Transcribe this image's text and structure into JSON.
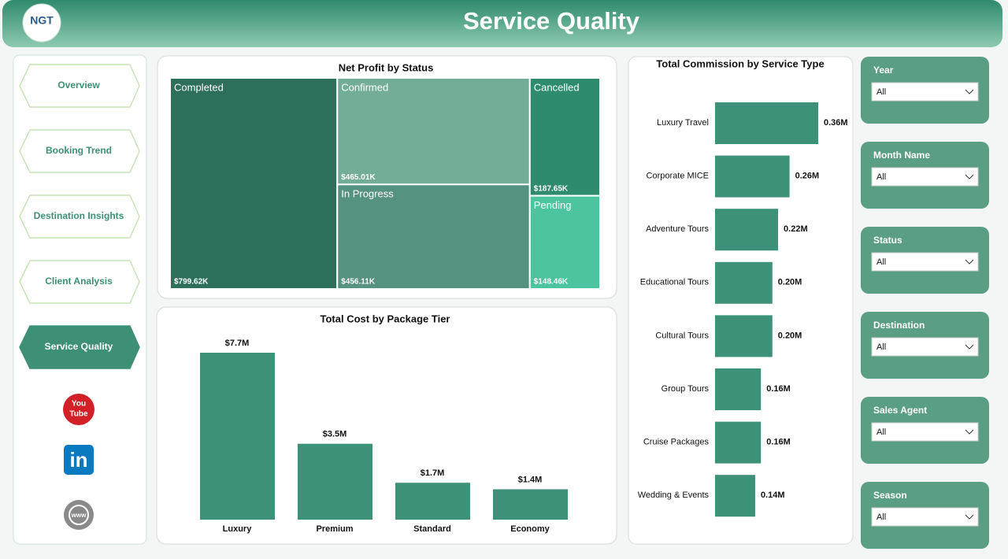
{
  "header": {
    "logo": "NGT",
    "title": "Service Quality"
  },
  "nav": [
    "Overview",
    "Booking Trend",
    "Destination Insights",
    "Client Analysis",
    "Service Quality"
  ],
  "social": {
    "youtube": [
      "You",
      "Tube"
    ],
    "linkedin": "in",
    "web": "www"
  },
  "filters": [
    {
      "label": "Year",
      "value": "All"
    },
    {
      "label": "Month Name",
      "value": "All"
    },
    {
      "label": "Status",
      "value": "All"
    },
    {
      "label": "Destination",
      "value": "All"
    },
    {
      "label": "Sales Agent",
      "value": "All"
    },
    {
      "label": "Season",
      "value": "All"
    }
  ],
  "chart_data": [
    {
      "type": "treemap",
      "title": "Net Profit by Status",
      "categories": [
        "Completed",
        "Confirmed",
        "In Progress",
        "Cancelled",
        "Pending"
      ],
      "values": [
        799.62,
        465.01,
        456.11,
        187.65,
        148.46
      ],
      "value_labels": [
        "$799.62K",
        "$465.01K",
        "$456.11K",
        "$187.65K",
        "$148.46K"
      ],
      "colors": [
        "#2e6f5c",
        "#72ad98",
        "#559280",
        "#2e8b6e",
        "#4cc4a0"
      ]
    },
    {
      "type": "bar",
      "title": "Total Cost by Package Tier",
      "categories": [
        "Luxury",
        "Premium",
        "Standard",
        "Economy"
      ],
      "values": [
        7.7,
        3.5,
        1.7,
        1.4
      ],
      "value_labels": [
        "$7.7M",
        "$3.5M",
        "$1.7M",
        "$1.4M"
      ],
      "color": "#3d9178"
    },
    {
      "type": "hbar",
      "title": "Total Commission by Service Type",
      "categories": [
        "Luxury Travel",
        "Corporate MICE",
        "Adventure Tours",
        "Educational Tours",
        "Cultural Tours",
        "Group Tours",
        "Cruise Packages",
        "Wedding & Events"
      ],
      "values": [
        0.36,
        0.26,
        0.22,
        0.2,
        0.2,
        0.16,
        0.16,
        0.14
      ],
      "value_labels": [
        "0.36M",
        "0.26M",
        "0.22M",
        "0.20M",
        "0.20M",
        "0.16M",
        "0.16M",
        "0.14M"
      ],
      "color": "#3d9178"
    }
  ]
}
